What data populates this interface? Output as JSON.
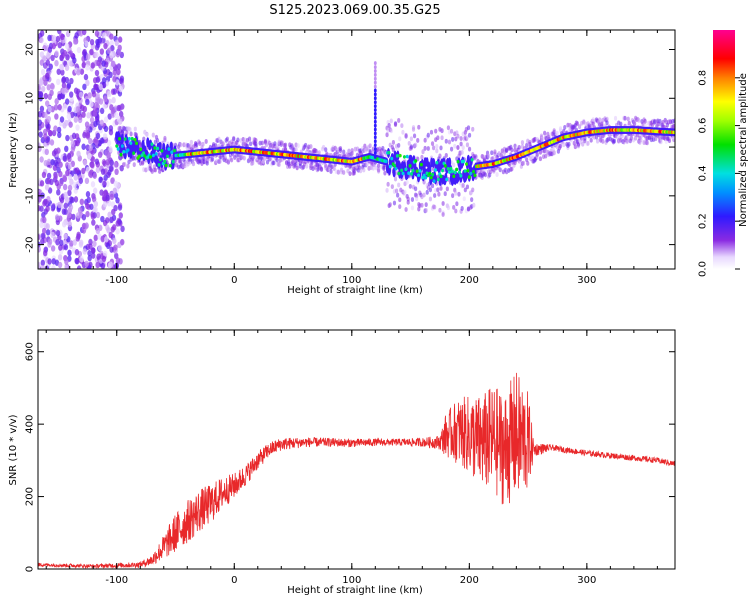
{
  "title": "S125.2023.069.00.35.G25",
  "colors": {
    "snr_line": "#e8282a",
    "frame": "#000000"
  },
  "chart_data": [
    {
      "type": "heatmap",
      "title": "S125.2023.069.00.35.G25",
      "xlabel": "Height of straight line (km)",
      "ylabel": "Frequency (Hz)",
      "xlim": [
        -167,
        375
      ],
      "ylim": [
        -25,
        24
      ],
      "x_ticks": [
        "-100",
        "0",
        "100",
        "200",
        "300"
      ],
      "y_ticks": [
        "-20",
        "-10",
        "0",
        "10",
        "20"
      ],
      "colorscale": "rainbow (purple-blue-cyan-green-yellow-red-magenta)",
      "ridge": {
        "description": "peak frequency track (Hz) vs height (km)",
        "x": [
          -100,
          -80,
          -60,
          -40,
          -20,
          0,
          20,
          40,
          60,
          80,
          100,
          115,
          130,
          150,
          170,
          190,
          205,
          220,
          240,
          260,
          280,
          300,
          320,
          340,
          360,
          375
        ],
        "y": [
          0.5,
          -0.5,
          -2,
          -1.5,
          -1,
          -0.5,
          -1,
          -1.5,
          -2,
          -2.5,
          -3,
          -2,
          -3,
          -4,
          -5,
          -5,
          -4,
          -3.5,
          -2,
          0,
          2,
          3,
          3.5,
          3.5,
          3.2,
          3
        ]
      },
      "noise_region": {
        "x_from": -167,
        "x_to": -95,
        "amplitude": "scattered 0.1-0.3"
      },
      "spike": {
        "x": 120,
        "y_max": 18
      }
    },
    {
      "type": "colorbar",
      "label": "Normalized spectral amplitude",
      "range": [
        0,
        1
      ],
      "ticks": [
        "0.0",
        "0.2",
        "0.4",
        "0.6",
        "0.8"
      ]
    },
    {
      "type": "line",
      "xlabel": "Height of straight line (km)",
      "ylabel": "SNR (10 * v/v)",
      "xlim": [
        -167,
        375
      ],
      "ylim": [
        0,
        660
      ],
      "x_ticks": [
        "-100",
        "0",
        "100",
        "200",
        "300"
      ],
      "y_ticks": [
        "0",
        "200",
        "400",
        "600"
      ],
      "series": [
        {
          "x": [
            -167,
            -120,
            -80,
            -70,
            -60,
            -50,
            -40,
            -30,
            -20,
            -10,
            0,
            10,
            20,
            30,
            40,
            60,
            80,
            100,
            120,
            140,
            160,
            175,
            180,
            190,
            200,
            210,
            220,
            230,
            240,
            250,
            255,
            270,
            300,
            330,
            360,
            375
          ],
          "y": [
            12,
            8,
            12,
            25,
            60,
            100,
            130,
            160,
            180,
            210,
            230,
            260,
            300,
            330,
            345,
            350,
            350,
            348,
            350,
            350,
            350,
            350,
            370,
            380,
            370,
            350,
            360,
            330,
            370,
            350,
            330,
            335,
            320,
            310,
            300,
            290
          ],
          "noise_amplitude": [
            5,
            5,
            8,
            15,
            35,
            55,
            60,
            60,
            55,
            45,
            35,
            30,
            25,
            20,
            18,
            14,
            12,
            12,
            10,
            10,
            12,
            20,
            60,
            90,
            110,
            130,
            150,
            160,
            180,
            140,
            20,
            8,
            8,
            8,
            8,
            8
          ]
        }
      ]
    }
  ]
}
